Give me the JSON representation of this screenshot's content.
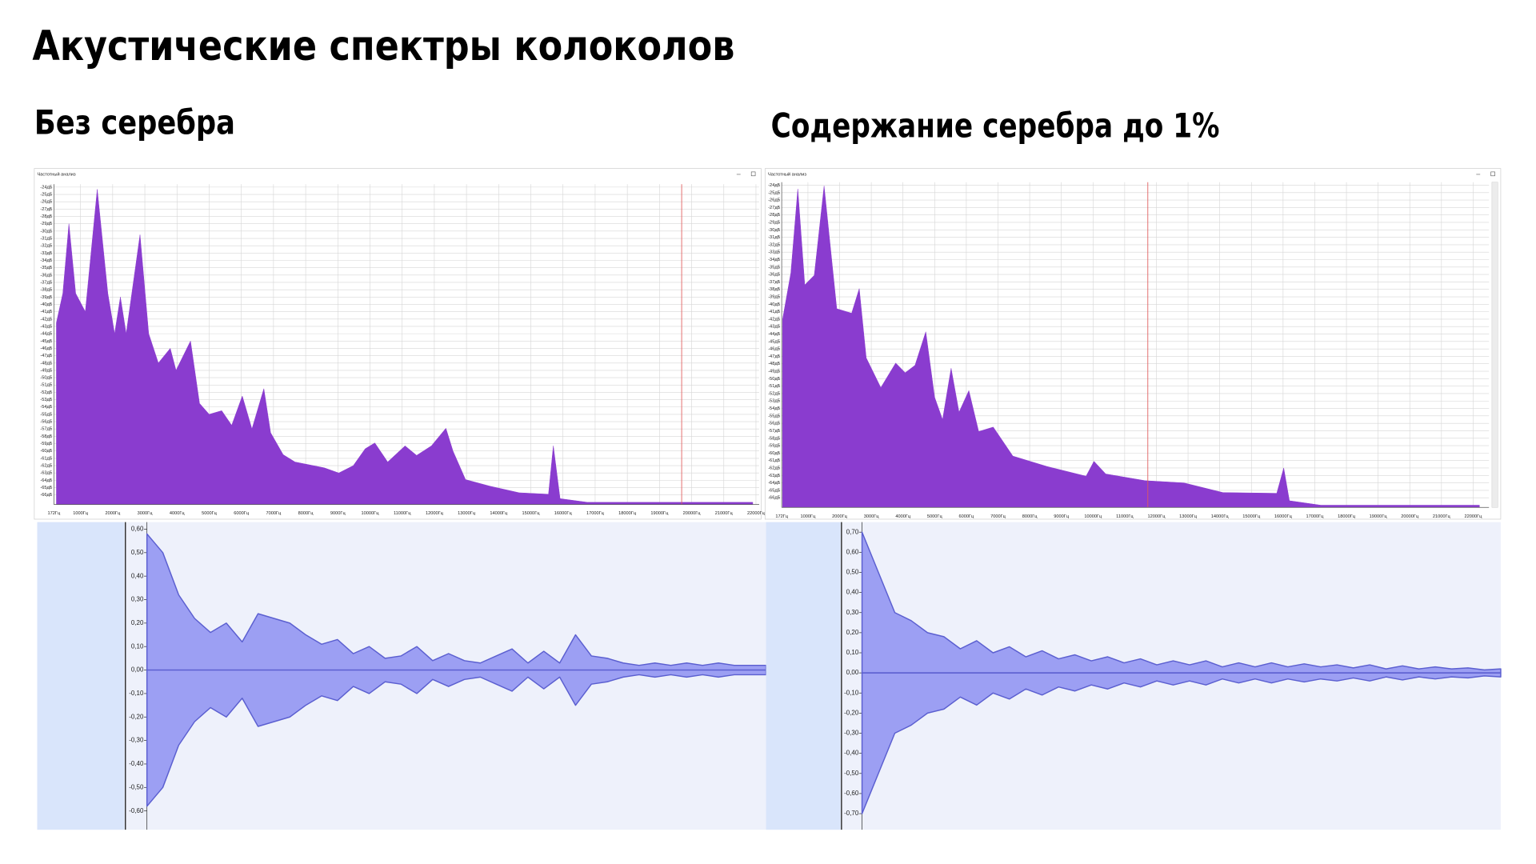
{
  "title": "Акустические спектры колоколов",
  "chart_data": [
    {
      "type": "area",
      "title": "Без серебра",
      "window_title": "Частотный анализ",
      "color": "#8a3ccf",
      "grid": true,
      "marker_x": 19690,
      "marker_color": "#e05a5a",
      "x": [
        250,
        450,
        640,
        850,
        1150,
        1520,
        1850,
        2060,
        2240,
        2420,
        2850,
        3120,
        3420,
        3790,
        3970,
        4420,
        4700,
        5000,
        5390,
        5700,
        6030,
        6330,
        6700,
        6910,
        7300,
        7670,
        8580,
        9030,
        9480,
        9850,
        10150,
        10550,
        11090,
        11450,
        11910,
        12360,
        12580,
        12970,
        13730,
        14640,
        15550,
        15700,
        15910,
        16760,
        21900
      ],
      "values": [
        -42.5,
        -38.5,
        -29,
        -38.5,
        -41,
        -24.3,
        -38.5,
        -44,
        -39,
        -44,
        -30.5,
        -44,
        -48,
        -46,
        -49,
        -45,
        -53.5,
        -55,
        -54.5,
        -56.5,
        -52.5,
        -57,
        -51.5,
        -57.5,
        -60.5,
        -61.5,
        -62.3,
        -63,
        -62,
        -59.7,
        -58.9,
        -61.5,
        -59.3,
        -60.6,
        -59.3,
        -56.9,
        -60,
        -63.9,
        -64.8,
        -65.7,
        -65.9,
        -59.3,
        -66.5,
        -67,
        -67
      ],
      "xlim": [
        172,
        22100
      ],
      "ylim": [
        -67.3,
        -23.6
      ],
      "xticks": [
        {
          "value": 172,
          "label": "172Гц"
        },
        {
          "value": 1000,
          "label": "1000Гц"
        },
        {
          "value": 2000,
          "label": "2000Гц"
        },
        {
          "value": 3000,
          "label": "3000Гц"
        },
        {
          "value": 4000,
          "label": "4000Гц"
        },
        {
          "value": 5000,
          "label": "5000Гц"
        },
        {
          "value": 6000,
          "label": "6000Гц"
        },
        {
          "value": 7000,
          "label": "7000Гц"
        },
        {
          "value": 8000,
          "label": "8000Гц"
        },
        {
          "value": 9000,
          "label": "9000Гц"
        },
        {
          "value": 10000,
          "label": "10000Гц"
        },
        {
          "value": 11000,
          "label": "11000Гц"
        },
        {
          "value": 12000,
          "label": "12000Гц"
        },
        {
          "value": 13000,
          "label": "13000Гц"
        },
        {
          "value": 14000,
          "label": "14000Гц"
        },
        {
          "value": 15000,
          "label": "15000Гц"
        },
        {
          "value": 16000,
          "label": "16000Гц"
        },
        {
          "value": 17000,
          "label": "17000Гц"
        },
        {
          "value": 18000,
          "label": "18000Гц"
        },
        {
          "value": 19000,
          "label": "19000Гц"
        },
        {
          "value": 20000,
          "label": "20000Гц"
        },
        {
          "value": 21000,
          "label": "21000Гц"
        },
        {
          "value": 22000,
          "label": "22000Гц"
        }
      ],
      "yticks": [
        {
          "value": -24,
          "label": "-24дБ"
        },
        {
          "value": -25,
          "label": "-25дБ"
        },
        {
          "value": -26,
          "label": "-26дБ"
        },
        {
          "value": -27,
          "label": "-27дБ"
        },
        {
          "value": -28,
          "label": "-28дБ"
        },
        {
          "value": -29,
          "label": "-29дБ"
        },
        {
          "value": -30,
          "label": "-30дБ"
        },
        {
          "value": -31,
          "label": "-31дБ"
        },
        {
          "value": -32,
          "label": "-32дБ"
        },
        {
          "value": -33,
          "label": "-33дБ"
        },
        {
          "value": -34,
          "label": "-34дБ"
        },
        {
          "value": -35,
          "label": "-35дБ"
        },
        {
          "value": -36,
          "label": "-36дБ"
        },
        {
          "value": -37,
          "label": "-37дБ"
        },
        {
          "value": -38,
          "label": "-38дБ"
        },
        {
          "value": -39,
          "label": "-39дБ"
        },
        {
          "value": -40,
          "label": "-40дБ"
        },
        {
          "value": -41,
          "label": "-41дБ"
        },
        {
          "value": -42,
          "label": "-42дБ"
        },
        {
          "value": -43,
          "label": "-43дБ"
        },
        {
          "value": -44,
          "label": "-44дБ"
        },
        {
          "value": -45,
          "label": "-45дБ"
        },
        {
          "value": -46,
          "label": "-46дБ"
        },
        {
          "value": -47,
          "label": "-47дБ"
        },
        {
          "value": -48,
          "label": "-48дБ"
        },
        {
          "value": -49,
          "label": "-49дБ"
        },
        {
          "value": -50,
          "label": "-50дБ"
        },
        {
          "value": -51,
          "label": "-51дБ"
        },
        {
          "value": -52,
          "label": "-52дБ"
        },
        {
          "value": -53,
          "label": "-53дБ"
        },
        {
          "value": -54,
          "label": "-54дБ"
        },
        {
          "value": -55,
          "label": "-55дБ"
        },
        {
          "value": -56,
          "label": "-56дБ"
        },
        {
          "value": -57,
          "label": "-57дБ"
        },
        {
          "value": -58,
          "label": "-58дБ"
        },
        {
          "value": -59,
          "label": "-59дБ"
        },
        {
          "value": -60,
          "label": "-60дБ"
        },
        {
          "value": -61,
          "label": "-61дБ"
        },
        {
          "value": -62,
          "label": "-62дБ"
        },
        {
          "value": -63,
          "label": "-63дБ"
        },
        {
          "value": -64,
          "label": "-64дБ"
        },
        {
          "value": -65,
          "label": "-65дБ"
        },
        {
          "value": -66,
          "label": "-66дБ"
        }
      ]
    },
    {
      "type": "area",
      "title": "Содержание серебра до 1%",
      "window_title": "Частотный анализ",
      "color": "#8a3ccf",
      "grid": true,
      "marker_x": 11730,
      "marker_color": "#e05a5a",
      "x": [
        200,
        460,
        680,
        900,
        1200,
        1510,
        1910,
        2380,
        2620,
        2840,
        3300,
        3770,
        4070,
        4380,
        4720,
        5000,
        5250,
        5520,
        5770,
        6080,
        6390,
        6850,
        7470,
        8550,
        9780,
        10030,
        10400,
        11640,
        12870,
        14100,
        15800,
        16020,
        16200,
        17190,
        22200
      ],
      "values": [
        -42,
        -35.8,
        -24.5,
        -37.4,
        -36.1,
        -24.1,
        -40.6,
        -41.2,
        -37.9,
        -47.2,
        -51.2,
        -47.9,
        -49.2,
        -48.2,
        -43.7,
        -52.5,
        -55.5,
        -48.6,
        -54.5,
        -51.6,
        -57.1,
        -56.5,
        -60.4,
        -61.8,
        -63.1,
        -61.1,
        -62.8,
        -63.7,
        -64,
        -65.3,
        -65.4,
        -62,
        -66.4,
        -67,
        -67
      ],
      "xlim": [
        172,
        22500
      ],
      "ylim": [
        -67.3,
        -23.6
      ],
      "xticks": [
        {
          "value": 172,
          "label": "172Гц"
        },
        {
          "value": 1000,
          "label": "1000Гц"
        },
        {
          "value": 2000,
          "label": "2000Гц"
        },
        {
          "value": 3000,
          "label": "3000Гц"
        },
        {
          "value": 4000,
          "label": "4000Гц"
        },
        {
          "value": 5000,
          "label": "5000Гц"
        },
        {
          "value": 6000,
          "label": "6000Гц"
        },
        {
          "value": 7000,
          "label": "7000Гц"
        },
        {
          "value": 8000,
          "label": "8000Гц"
        },
        {
          "value": 9000,
          "label": "9000Гц"
        },
        {
          "value": 10000,
          "label": "10000Гц"
        },
        {
          "value": 11000,
          "label": "11000Гц"
        },
        {
          "value": 12000,
          "label": "12000Гц"
        },
        {
          "value": 13000,
          "label": "13000Гц"
        },
        {
          "value": 14000,
          "label": "14000Гц"
        },
        {
          "value": 15000,
          "label": "15000Гц"
        },
        {
          "value": 16000,
          "label": "16000Гц"
        },
        {
          "value": 17000,
          "label": "17000Гц"
        },
        {
          "value": 18000,
          "label": "18000Гц"
        },
        {
          "value": 19000,
          "label": "19000Гц"
        },
        {
          "value": 20000,
          "label": "20000Гц"
        },
        {
          "value": 21000,
          "label": "21000Гц"
        },
        {
          "value": 22000,
          "label": "22000Гц"
        }
      ],
      "yticks": [
        {
          "value": -24,
          "label": "-24дБ"
        },
        {
          "value": -25,
          "label": "-25дБ"
        },
        {
          "value": -26,
          "label": "-26дБ"
        },
        {
          "value": -27,
          "label": "-27дБ"
        },
        {
          "value": -28,
          "label": "-28дБ"
        },
        {
          "value": -29,
          "label": "-29дБ"
        },
        {
          "value": -30,
          "label": "-30дБ"
        },
        {
          "value": -31,
          "label": "-31дБ"
        },
        {
          "value": -32,
          "label": "-32дБ"
        },
        {
          "value": -33,
          "label": "-33дБ"
        },
        {
          "value": -34,
          "label": "-34дБ"
        },
        {
          "value": -35,
          "label": "-35дБ"
        },
        {
          "value": -36,
          "label": "-36дБ"
        },
        {
          "value": -37,
          "label": "-37дБ"
        },
        {
          "value": -38,
          "label": "-38дБ"
        },
        {
          "value": -39,
          "label": "-39дБ"
        },
        {
          "value": -40,
          "label": "-40дБ"
        },
        {
          "value": -41,
          "label": "-41дБ"
        },
        {
          "value": -42,
          "label": "-42дБ"
        },
        {
          "value": -43,
          "label": "-43дБ"
        },
        {
          "value": -44,
          "label": "-44дБ"
        },
        {
          "value": -45,
          "label": "-45дБ"
        },
        {
          "value": -46,
          "label": "-46дБ"
        },
        {
          "value": -47,
          "label": "-47дБ"
        },
        {
          "value": -48,
          "label": "-48дБ"
        },
        {
          "value": -49,
          "label": "-49дБ"
        },
        {
          "value": -50,
          "label": "-50дБ"
        },
        {
          "value": -51,
          "label": "-51дБ"
        },
        {
          "value": -52,
          "label": "-52дБ"
        },
        {
          "value": -53,
          "label": "-53дБ"
        },
        {
          "value": -54,
          "label": "-54дБ"
        },
        {
          "value": -55,
          "label": "-55дБ"
        },
        {
          "value": -56,
          "label": "-56дБ"
        },
        {
          "value": -57,
          "label": "-57дБ"
        },
        {
          "value": -58,
          "label": "-58дБ"
        },
        {
          "value": -59,
          "label": "-59дБ"
        },
        {
          "value": -60,
          "label": "-60дБ"
        },
        {
          "value": -61,
          "label": "-61дБ"
        },
        {
          "value": -62,
          "label": "-62дБ"
        },
        {
          "value": -63,
          "label": "-63дБ"
        },
        {
          "value": -64,
          "label": "-64дБ"
        },
        {
          "value": -65,
          "label": "-65дБ"
        },
        {
          "value": -66,
          "label": "-66дБ"
        }
      ]
    },
    {
      "type": "waveform",
      "color": "#5b5fd0",
      "fill": "#9c9ff3",
      "categories": [
        null,
        null,
        null,
        null,
        null,
        null,
        null,
        null,
        null,
        null,
        null,
        null,
        null,
        null,
        null,
        null,
        null,
        null,
        null,
        null,
        null,
        null,
        null,
        null,
        null,
        null,
        null,
        null,
        null,
        null,
        null,
        null,
        null,
        null,
        null,
        null,
        null,
        null,
        null,
        null
      ],
      "values": [
        0.58,
        0.5,
        0.32,
        0.22,
        0.16,
        0.2,
        0.12,
        0.24,
        0.22,
        0.2,
        0.15,
        0.11,
        0.13,
        0.07,
        0.1,
        0.05,
        0.06,
        0.1,
        0.04,
        0.07,
        0.04,
        0.03,
        0.06,
        0.09,
        0.03,
        0.08,
        0.03,
        0.15,
        0.06,
        0.05,
        0.03,
        0.02,
        0.03,
        0.02,
        0.03,
        0.02,
        0.03,
        0.02,
        0.02,
        0.02
      ],
      "ylim": [
        -0.68,
        0.63
      ],
      "yticks": [
        {
          "value": 0.6,
          "label": "0,60"
        },
        {
          "value": 0.5,
          "label": "0,50"
        },
        {
          "value": 0.4,
          "label": "0,40"
        },
        {
          "value": 0.3,
          "label": "0,30"
        },
        {
          "value": 0.2,
          "label": "0,20"
        },
        {
          "value": 0.1,
          "label": "0,10"
        },
        {
          "value": 0,
          "label": "0,00"
        },
        {
          "value": -0.1,
          "label": "-0,10"
        },
        {
          "value": -0.2,
          "label": "-0,20"
        },
        {
          "value": -0.3,
          "label": "-0,30"
        },
        {
          "value": -0.4,
          "label": "-0,40"
        },
        {
          "value": -0.5,
          "label": "-0,50"
        },
        {
          "value": -0.6,
          "label": "-0,60"
        }
      ]
    },
    {
      "type": "waveform",
      "color": "#5b5fd0",
      "fill": "#9c9ff3",
      "categories": [
        null,
        null,
        null,
        null,
        null,
        null,
        null,
        null,
        null,
        null,
        null,
        null,
        null,
        null,
        null,
        null,
        null,
        null,
        null,
        null,
        null,
        null,
        null,
        null,
        null,
        null,
        null,
        null,
        null,
        null,
        null,
        null,
        null,
        null,
        null,
        null,
        null,
        null,
        null,
        null
      ],
      "values": [
        0.7,
        0.5,
        0.3,
        0.26,
        0.2,
        0.18,
        0.12,
        0.16,
        0.1,
        0.13,
        0.08,
        0.11,
        0.07,
        0.09,
        0.06,
        0.08,
        0.05,
        0.07,
        0.04,
        0.06,
        0.04,
        0.06,
        0.03,
        0.05,
        0.03,
        0.05,
        0.03,
        0.045,
        0.03,
        0.04,
        0.025,
        0.04,
        0.02,
        0.035,
        0.02,
        0.03,
        0.02,
        0.025,
        0.015,
        0.02
      ],
      "ylim": [
        -0.78,
        0.75
      ],
      "yticks": [
        {
          "value": 0.7,
          "label": "0,70"
        },
        {
          "value": 0.6,
          "label": "0,60"
        },
        {
          "value": 0.5,
          "label": "0,50"
        },
        {
          "value": 0.4,
          "label": "0,40"
        },
        {
          "value": 0.3,
          "label": "0,30"
        },
        {
          "value": 0.2,
          "label": "0,20"
        },
        {
          "value": 0.1,
          "label": "0,10"
        },
        {
          "value": 0,
          "label": "0,00"
        },
        {
          "value": -0.1,
          "label": "-0,10"
        },
        {
          "value": -0.2,
          "label": "-0,20"
        },
        {
          "value": -0.3,
          "label": "-0,30"
        },
        {
          "value": -0.4,
          "label": "-0,40"
        },
        {
          "value": -0.5,
          "label": "-0,50"
        },
        {
          "value": -0.6,
          "label": "-0,60"
        },
        {
          "value": -0.7,
          "label": "-0,70"
        }
      ]
    }
  ]
}
